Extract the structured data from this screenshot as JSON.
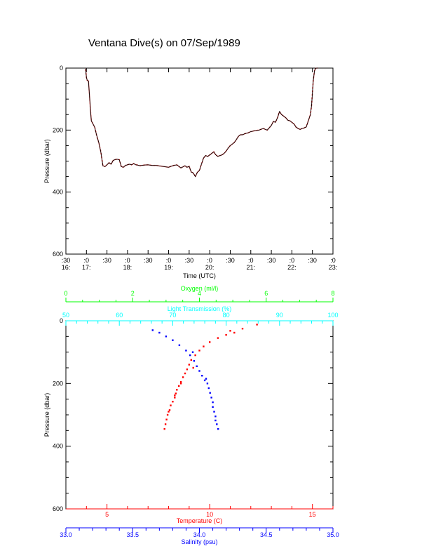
{
  "title": "Ventana Dive(s) on 07/Sep/1989",
  "colors": {
    "black": "#000000",
    "track": "#000000",
    "track_overlay": "#ff0000",
    "temperature": "#ff0000",
    "salinity": "#0000ff",
    "oxygen": "#00ff00",
    "light": "#00ffff"
  },
  "chart_data": [
    {
      "type": "line",
      "name": "dive-track",
      "xlabel": "Time (UTC)",
      "ylabel": "Pressure (dbar)",
      "xlim": [
        16.5,
        23.0
      ],
      "ylim": [
        600,
        0
      ],
      "x_ticks": [
        {
          "x": 16.5,
          "top": ":30",
          "bottom": "16:"
        },
        {
          "x": 17.0,
          "top": ":0",
          "bottom": "17:"
        },
        {
          "x": 17.5,
          "top": ":30",
          "bottom": ""
        },
        {
          "x": 18.0,
          "top": ":0",
          "bottom": "18:"
        },
        {
          "x": 18.5,
          "top": ":30",
          "bottom": ""
        },
        {
          "x": 19.0,
          "top": ":0",
          "bottom": "19:"
        },
        {
          "x": 19.5,
          "top": ":30",
          "bottom": ""
        },
        {
          "x": 20.0,
          "top": ":0",
          "bottom": "20:"
        },
        {
          "x": 20.5,
          "top": ":30",
          "bottom": ""
        },
        {
          "x": 21.0,
          "top": ":0",
          "bottom": "21:"
        },
        {
          "x": 21.5,
          "top": ":30",
          "bottom": ""
        },
        {
          "x": 22.0,
          "top": ":0",
          "bottom": "22:"
        },
        {
          "x": 22.5,
          "top": ":30",
          "bottom": ""
        },
        {
          "x": 23.0,
          "top": ":0",
          "bottom": "23:"
        }
      ],
      "y_ticks": [
        "0",
        "200",
        "400",
        "600"
      ],
      "y_tick_values": [
        0,
        200,
        400,
        600
      ],
      "x": [
        16.98,
        17.0,
        17.02,
        17.05,
        17.07,
        17.1,
        17.12,
        17.15,
        17.2,
        17.25,
        17.3,
        17.35,
        17.4,
        17.45,
        17.5,
        17.55,
        17.6,
        17.65,
        17.7,
        17.75,
        17.8,
        17.85,
        17.9,
        17.95,
        18.0,
        18.05,
        18.1,
        18.15,
        18.2,
        18.25,
        18.3,
        18.4,
        18.5,
        18.6,
        18.7,
        18.8,
        18.9,
        19.0,
        19.1,
        19.2,
        19.3,
        19.4,
        19.45,
        19.5,
        19.55,
        19.6,
        19.65,
        19.7,
        19.75,
        19.8,
        19.85,
        19.9,
        19.95,
        20.0,
        20.05,
        20.1,
        20.15,
        20.2,
        20.25,
        20.3,
        20.35,
        20.4,
        20.45,
        20.5,
        20.55,
        20.6,
        20.65,
        20.7,
        20.75,
        20.8,
        20.85,
        20.9,
        20.95,
        21.0,
        21.1,
        21.2,
        21.3,
        21.4,
        21.5,
        21.55,
        21.6,
        21.65,
        21.7,
        21.75,
        21.8,
        21.85,
        21.9,
        21.95,
        22.0,
        22.05,
        22.1,
        22.15,
        22.2,
        22.25,
        22.3,
        22.35,
        22.4,
        22.45,
        22.48,
        22.5,
        22.52,
        22.55,
        22.57,
        22.6,
        22.62
      ],
      "y": [
        2,
        30,
        40,
        42,
        80,
        140,
        170,
        178,
        190,
        218,
        240,
        270,
        315,
        318,
        312,
        305,
        310,
        298,
        295,
        294,
        296,
        318,
        320,
        314,
        312,
        310,
        312,
        308,
        312,
        313,
        315,
        313,
        312,
        314,
        314,
        316,
        318,
        320,
        315,
        312,
        322,
        315,
        320,
        317,
        335,
        338,
        350,
        336,
        330,
        310,
        290,
        282,
        285,
        280,
        275,
        270,
        280,
        285,
        282,
        280,
        275,
        268,
        258,
        250,
        245,
        240,
        230,
        220,
        215,
        215,
        212,
        210,
        208,
        205,
        202,
        200,
        195,
        200,
        185,
        172,
        175,
        160,
        140,
        150,
        155,
        160,
        168,
        170,
        175,
        180,
        190,
        195,
        198,
        195,
        193,
        190,
        170,
        150,
        120,
        80,
        40,
        10,
        2,
        0,
        0
      ]
    },
    {
      "type": "scatter",
      "name": "profiles",
      "ylabel": "Pressure (dbar)",
      "ylim": [
        600,
        0
      ],
      "y_ticks": [
        "0",
        "200",
        "400",
        "600"
      ],
      "y_tick_values": [
        0,
        200,
        400,
        600
      ],
      "axes": {
        "oxygen": {
          "label": "Oxygen (ml/l)",
          "lim": [
            0,
            8
          ],
          "ticks": [
            "0",
            "2",
            "4",
            "6",
            "8"
          ],
          "tick_values": [
            0,
            2,
            4,
            6,
            8
          ]
        },
        "light": {
          "label": "Light Transmission (%)",
          "lim": [
            50,
            100
          ],
          "ticks": [
            "50",
            "60",
            "70",
            "80",
            "90",
            "100"
          ],
          "tick_values": [
            50,
            60,
            70,
            80,
            90,
            100
          ]
        },
        "temperature": {
          "label": "Temperature (C)",
          "lim": [
            3.0,
            16.0
          ],
          "ticks": [
            "5",
            "10",
            "15"
          ],
          "tick_values": [
            5,
            10,
            15
          ]
        },
        "salinity": {
          "label": "Salinity (psu)",
          "lim": [
            33.0,
            35.0
          ],
          "ticks": [
            "33.0",
            "33.5",
            "34.0",
            "34.5",
            "35.0"
          ],
          "tick_values": [
            33.0,
            33.5,
            34.0,
            34.5,
            35.0
          ]
        }
      },
      "series": [
        {
          "axis": "temperature",
          "points": [
            [
              12.3,
              12
            ],
            [
              11.6,
              25
            ],
            [
              11.0,
              32
            ],
            [
              11.2,
              38
            ],
            [
              10.8,
              45
            ],
            [
              10.4,
              55
            ],
            [
              10.0,
              68
            ],
            [
              9.7,
              82
            ],
            [
              9.5,
              95
            ],
            [
              9.3,
              110
            ],
            [
              9.1,
              125
            ],
            [
              9.0,
              140
            ],
            [
              8.9,
              155
            ],
            [
              8.8,
              168
            ],
            [
              8.7,
              180
            ],
            [
              8.6,
              195
            ],
            [
              8.5,
              208
            ],
            [
              8.4,
              220
            ],
            [
              8.35,
              232
            ],
            [
              8.3,
              245
            ],
            [
              8.2,
              258
            ],
            [
              8.1,
              270
            ],
            [
              8.05,
              285
            ],
            [
              7.95,
              300
            ],
            [
              7.9,
              315
            ],
            [
              7.85,
              330
            ],
            [
              7.8,
              345
            ],
            [
              8.0,
              290
            ],
            [
              8.3,
              238
            ],
            [
              8.6,
              200
            ],
            [
              9.2,
              150
            ]
          ]
        },
        {
          "axis": "salinity",
          "points": [
            [
              33.65,
              30
            ],
            [
              33.7,
              38
            ],
            [
              33.75,
              50
            ],
            [
              33.8,
              62
            ],
            [
              33.85,
              78
            ],
            [
              33.9,
              95
            ],
            [
              33.93,
              110
            ],
            [
              33.96,
              128
            ],
            [
              33.98,
              145
            ],
            [
              34.0,
              160
            ],
            [
              34.02,
              175
            ],
            [
              34.04,
              190
            ],
            [
              34.06,
              200
            ],
            [
              34.07,
              215
            ],
            [
              34.08,
              230
            ],
            [
              34.09,
              245
            ],
            [
              34.1,
              260
            ],
            [
              34.1,
              275
            ],
            [
              34.11,
              290
            ],
            [
              34.12,
              305
            ],
            [
              34.12,
              318
            ],
            [
              34.13,
              330
            ],
            [
              34.14,
              345
            ],
            [
              33.95,
              100
            ],
            [
              34.05,
              185
            ]
          ]
        }
      ]
    }
  ]
}
